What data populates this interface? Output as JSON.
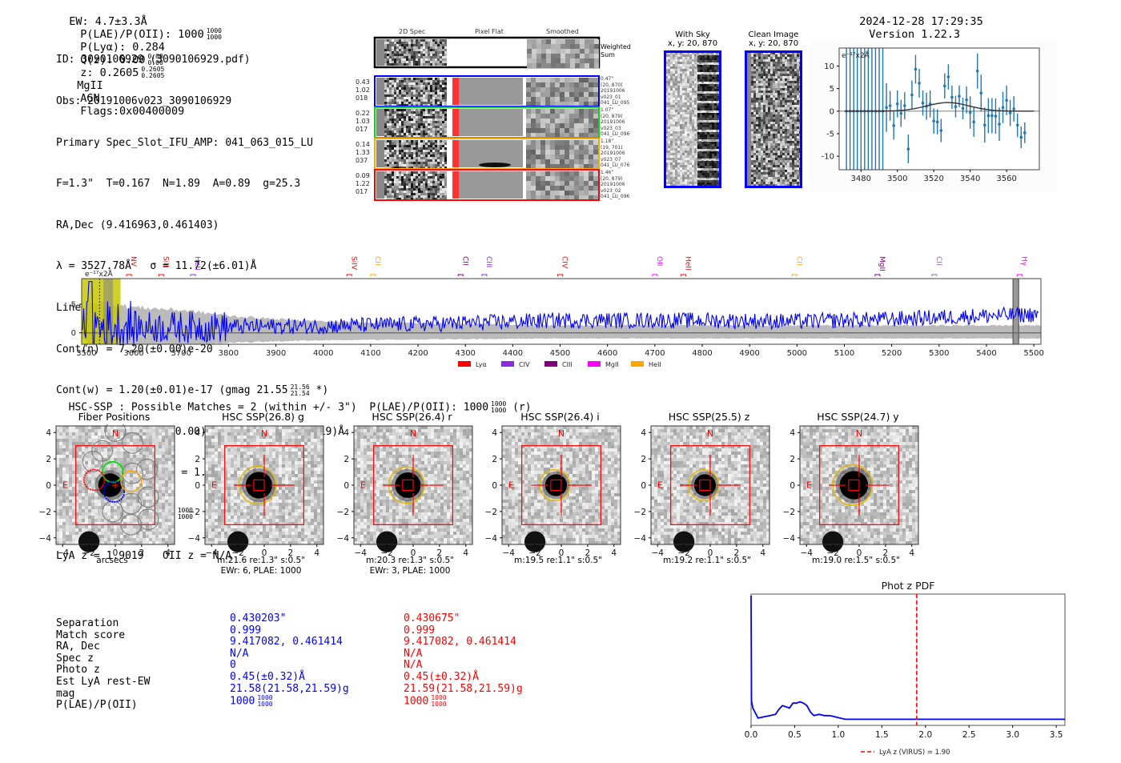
{
  "header": {
    "ew": "EW: 4.7±3.3Å",
    "plae_label": "P(LAE)/P(OII): 1000",
    "plae_hi": "1000",
    "plae_lo": "1000",
    "plya": "P(Lyα): 0.284",
    "qz_label": "Q(z): 0.00",
    "qz_hi": "0.00",
    "qz_lo": "0.00",
    "z_label": "z: 0.2605",
    "z_hi": "0.2605",
    "z_lo": "0.2605",
    "line": "MgII",
    "type": "AGN",
    "flags": "Flags:0x00400009",
    "timestamp": "2024-12-28 17:29:35",
    "version": "Version 1.22.3"
  },
  "info": {
    "id": "ID: 3090106929 (3090106929.pdf)",
    "obs": "Obs: 20191006v023_3090106929",
    "primary": "Primary Spec_Slot_IFU_AMP: 041_063_015_LU",
    "params": "F=1.3\"  T=0.167  N=1.89  A=0.89  g=25.3",
    "radec": "RA,Dec (9.416963,0.461403)",
    "lambda": "λ = 3527.78Å   σ = 11.72(±6.01)Å",
    "lineflux": "LineFlux = 2.70(±1.90)e-16",
    "contn": "Cont(n) = 7.20(±0.00)e-20",
    "contw": "Cont(w) = 1.20(±0.01)e-17 (gmag 21.55",
    "contw_hi": "21.56",
    "contw_lo": "21.54",
    "contw_tail": " *)",
    "ewr": "EWr = 1300.00(±41000.00) (w: -2.90(±0.03)e19)Å",
    "sn": "S/N = 1.7(±1.2)  χ² = 1.2(±0.0)",
    "plae": "P(LAE)/P(OII): 1000",
    "plae_hi": "1000",
    "plae_lo": "1000",
    "lyaz": "LyA z = 1.9019   OII z = N/A"
  },
  "spec2d": {
    "col_headers": [
      "2D Spec",
      "Pixel Flat",
      "Smoothed"
    ],
    "weighted_label": "Weighted Sum",
    "rows": [
      {
        "color": "#0000ff",
        "left": [
          "0.43",
          "1.02",
          "018"
        ],
        "right": [
          "0.47\"",
          "(20, 870)",
          "20191006",
          "v023_01",
          "041_LU_095"
        ]
      },
      {
        "color": "#00dd00",
        "left": [
          "0.22",
          "1.03",
          "017"
        ],
        "right": [
          "1.07\"",
          "(20, 879)",
          "20191006",
          "v023_03",
          "041_LU_096"
        ]
      },
      {
        "color": "#ffa500",
        "left": [
          "0.14",
          "1.33",
          "037"
        ],
        "right": [
          "1.18\"",
          "(19, 701)",
          "20191006",
          "v023_07",
          "041_LU_076"
        ]
      },
      {
        "color": "#ff0000",
        "left": [
          "0.09",
          "1.22",
          "017"
        ],
        "right": [
          "1.46\"",
          "(20, 879)",
          "20191006",
          "v023_02",
          "041_LU_096"
        ]
      }
    ]
  },
  "cutouts": {
    "with_sky": {
      "title": "With Sky",
      "coords": "x, y: 20, 870"
    },
    "clean": {
      "title": "Clean Image",
      "coords": "x, y: 20, 870"
    }
  },
  "hsc": {
    "summary": "HSC-SSP : Possible Matches = 2 (within +/- 3\")  P(LAE)/P(OII): 1000",
    "summary_hi": "1000",
    "summary_lo": "1000",
    "summary_tail": " (r)",
    "north": "N",
    "east": "E",
    "xlabel": "arcsecs",
    "panels": [
      {
        "title": "Fiber Positions",
        "line1": "",
        "line2": ""
      },
      {
        "title": "HSC SSP(26.8) g",
        "line1": "m:21.6  re:1.3\"  s:0.5\"",
        "line2": "EWr: 6, PLAE: 1000",
        "ell_r": 1.4
      },
      {
        "title": "HSC SSP(26.4) r",
        "line1": "m:20.3  re:1.3\"  s:0.5\"",
        "line2": "EWr: 3, PLAE: 1000",
        "ell_r": 1.35
      },
      {
        "title": "HSC SSP(26.4) i",
        "line1": "m:19.5  re:1.1\"  s:0.5\"",
        "line2": "",
        "ell_r": 1.15
      },
      {
        "title": "HSC SSP(25.5) z",
        "line1": "m:19.2  re:1.1\"  s:0.5\"",
        "line2": "",
        "ell_r": 1.15
      },
      {
        "title": "HSC SSP(24.7) y",
        "line1": "m:19.0  re:1.5\"  s:0.5\"",
        "line2": "",
        "ell_r": 1.5
      }
    ],
    "ticks": [
      "-4",
      "-2",
      "0",
      "2",
      "4"
    ]
  },
  "matches": {
    "labels": [
      "Separation",
      "Match score",
      "RA, Dec",
      "Spec z",
      "Photo z",
      "Est LyA rest-EW",
      "mag",
      "P(LAE)/P(OII)"
    ],
    "blue": [
      "0.430203\"",
      "0.999",
      "9.417082, 0.461414",
      "N/A",
      "0",
      "0.45(±0.32)Å",
      "21.58(21.58,21.59)g",
      "1000"
    ],
    "red": [
      "0.430675\"",
      "0.999",
      "9.417082, 0.461414",
      "N/A",
      "N/A",
      "0.45(±0.32)Å",
      "21.59(21.58,21.59)g",
      "1000"
    ],
    "plae_hi": "1000",
    "plae_lo": "1000"
  },
  "chart_data": [
    {
      "type": "scatter",
      "name": "line-fit",
      "title": "",
      "annotation": "e⁻¹⁷x2Å",
      "xlim": [
        3468,
        3578
      ],
      "ylim": [
        -13,
        14
      ],
      "xticks": [
        3480,
        3500,
        3520,
        3540,
        3560
      ],
      "yticks": [
        -10,
        -5,
        0,
        5,
        10
      ],
      "x": [
        3472,
        3474,
        3476,
        3478,
        3480,
        3482,
        3484,
        3486,
        3488,
        3490,
        3492,
        3494,
        3496,
        3498,
        3500,
        3502,
        3504,
        3506,
        3508,
        3510,
        3512,
        3514,
        3516,
        3518,
        3520,
        3522,
        3524,
        3526,
        3528,
        3530,
        3532,
        3534,
        3536,
        3538,
        3540,
        3542,
        3544,
        3546,
        3548,
        3550,
        3552,
        3554,
        3556,
        3558,
        3560,
        3562,
        3564,
        3566,
        3568,
        3570
      ],
      "y": [
        0,
        0,
        0,
        0,
        0,
        0,
        0,
        0,
        0,
        0,
        0,
        0.8,
        1.2,
        -3.2,
        1.6,
        -0.5,
        1.2,
        -8.4,
        3.6,
        9.3,
        6.2,
        1.8,
        1.1,
        1.6,
        -2.2,
        -2.4,
        -4.3,
        5.6,
        7.6,
        3.1,
        1.0,
        3.3,
        0.6,
        2.5,
        -0.3,
        -2.4,
        8.9,
        4.0,
        -3.1,
        -1.0,
        -1.0,
        -1.1,
        -2.9,
        0.8,
        2.4,
        -0.4,
        0.5,
        -3.1,
        -5.8,
        -4.8
      ],
      "yerr": [
        60,
        60,
        60,
        60,
        60,
        60,
        60,
        60,
        60,
        60,
        60,
        5.4,
        3.3,
        3.1,
        3.0,
        3.0,
        3.0,
        3.2,
        3.2,
        3.2,
        3.2,
        2.8,
        3.0,
        3.0,
        2.8,
        2.8,
        2.6,
        2.8,
        2.8,
        2.6,
        2.4,
        2.4,
        2.4,
        3.0,
        3.6,
        3.3,
        3.9,
        4.1,
        3.9,
        3.9,
        3.9,
        3.9,
        3.7,
        3.5,
        3.3,
        2.9,
        2.8,
        2.6,
        2.4,
        2.3
      ],
      "fit": {
        "type": "gaussian",
        "center": 3527.78,
        "sigma": 11.72,
        "amplitude": 1.9
      }
    },
    {
      "type": "line",
      "name": "full-spectrum",
      "annotation": "e⁻¹⁷x2Å",
      "xlim": [
        3490,
        5515
      ],
      "ylim": [
        -2,
        9.5
      ],
      "xticks": [
        3500,
        3600,
        3700,
        3800,
        3900,
        4000,
        4100,
        4200,
        4300,
        4400,
        4500,
        4600,
        4700,
        4800,
        4900,
        5000,
        5100,
        5200,
        5300,
        5400,
        5500
      ],
      "yticks": [
        0,
        5
      ],
      "highlight_region": [
        3490,
        3572
      ],
      "masked_region": [
        5456,
        5468
      ],
      "line_markers": [
        {
          "label": "NV",
          "x": 3590,
          "color": "#ff0000"
        },
        {
          "label": "SiII",
          "x": 3658,
          "color": "#ff0000"
        },
        {
          "label": "HeII",
          "x": 3725,
          "color": "#8a2be2"
        },
        {
          "label": "SiIV",
          "x": 4055,
          "color": "#ff0000"
        },
        {
          "label": "CII",
          "x": 4105,
          "color": "#ffa500"
        },
        {
          "label": "CII",
          "x": 4290,
          "color": "#800080"
        },
        {
          "label": "CIII",
          "x": 4340,
          "color": "#8a2be2"
        },
        {
          "label": "CIV",
          "x": 4500,
          "color": "#ff0000"
        },
        {
          "label": "OII",
          "x": 4700,
          "color": "#ff00ff"
        },
        {
          "label": "HeII",
          "x": 4760,
          "color": "#ff0000"
        },
        {
          "label": "CII",
          "x": 4995,
          "color": "#ffa500"
        },
        {
          "label": "MgII",
          "x": 5170,
          "color": "#800080"
        },
        {
          "label": "CII",
          "x": 5290,
          "color": "#9b59d0"
        },
        {
          "label": "Hγ",
          "x": 5470,
          "color": "#ff00ff"
        }
      ],
      "legend": [
        {
          "label": "Lyα",
          "color": "#ff0000"
        },
        {
          "label": "CIV",
          "color": "#8a2be2"
        },
        {
          "label": "CIII",
          "color": "#800080"
        },
        {
          "label": "MgII",
          "color": "#ff00ff"
        },
        {
          "label": "HeII",
          "color": "#ffa500"
        }
      ],
      "legend_position": "bottom-center",
      "trend": [
        [
          3500,
          1.0
        ],
        [
          3700,
          1.0
        ],
        [
          4000,
          1.2
        ],
        [
          4300,
          1.7
        ],
        [
          4500,
          2.2
        ],
        [
          4800,
          2.2
        ],
        [
          5000,
          2.0
        ],
        [
          5200,
          2.4
        ],
        [
          5400,
          3.0
        ],
        [
          5500,
          3.2
        ]
      ],
      "noise_band": [
        [
          3500,
          5.5
        ],
        [
          3600,
          4.5
        ],
        [
          3700,
          4.0
        ],
        [
          3800,
          3.0
        ],
        [
          3900,
          2.4
        ],
        [
          4000,
          2.0
        ],
        [
          4200,
          1.7
        ],
        [
          4500,
          1.3
        ],
        [
          5000,
          1.3
        ],
        [
          5500,
          1.3
        ]
      ]
    },
    {
      "type": "line",
      "name": "phot-z-pdf",
      "title": "Phot z PDF",
      "xlim": [
        0,
        3.6
      ],
      "xticks": [
        0.0,
        0.5,
        1.0,
        1.5,
        2.0,
        2.5,
        3.0,
        3.5
      ],
      "x": [
        0.0,
        0.005,
        0.02,
        0.08,
        0.15,
        0.22,
        0.28,
        0.32,
        0.36,
        0.4,
        0.44,
        0.48,
        0.52,
        0.56,
        0.6,
        0.64,
        0.68,
        0.72,
        0.78,
        0.84,
        0.9,
        0.96,
        1.02,
        1.08,
        3.6
      ],
      "y": [
        1.0,
        0.16,
        0.1,
        0.02,
        0.03,
        0.04,
        0.05,
        0.09,
        0.12,
        0.11,
        0.1,
        0.14,
        0.14,
        0.15,
        0.14,
        0.12,
        0.07,
        0.04,
        0.05,
        0.04,
        0.04,
        0.03,
        0.02,
        0.01,
        0.01
      ],
      "vline": {
        "x": 1.9,
        "label": "LyA z (VIRUS) = 1.90",
        "color": "#ff0000",
        "style": "dashed"
      },
      "legend_position": "bottom-center"
    }
  ]
}
